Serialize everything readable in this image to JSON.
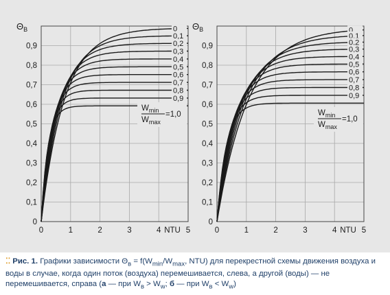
{
  "chart_data": [
    {
      "type": "line",
      "panel": "a",
      "ylabel_symbol": "Θ",
      "ylabel_sub": "В",
      "xlabel": "NTU",
      "xlim": [
        0,
        5
      ],
      "ylim": [
        0,
        1.0
      ],
      "x_ticks": [
        "0",
        "1",
        "2",
        "3",
        "4",
        "5"
      ],
      "y_ticks": [
        "0",
        "0,1",
        "0,2",
        "0,3",
        "0,4",
        "0,5",
        "0,6",
        "0,7",
        "0,8",
        "0,9"
      ],
      "grid": true,
      "ratio_label": {
        "num": "W",
        "num_sub": "min",
        "den": "W",
        "den_sub": "max",
        "value": "=1,0"
      },
      "series": [
        {
          "label": "0",
          "end_value": 0.99
        },
        {
          "label": "0,1",
          "end_value": 0.951
        },
        {
          "label": "0,2",
          "end_value": 0.912
        },
        {
          "label": "0,3",
          "end_value": 0.872
        },
        {
          "label": "0,4",
          "end_value": 0.832
        },
        {
          "label": "0,5",
          "end_value": 0.792
        },
        {
          "label": "0,6",
          "end_value": 0.752
        },
        {
          "label": "0,7",
          "end_value": 0.712
        },
        {
          "label": "0,8",
          "end_value": 0.672
        },
        {
          "label": "0,9",
          "end_value": 0.632
        },
        {
          "label": "",
          "end_value": 0.592
        }
      ]
    },
    {
      "type": "line",
      "panel": "б",
      "ylabel_symbol": "Θ",
      "ylabel_sub": "В",
      "xlabel": "NTU",
      "xlim": [
        0,
        5
      ],
      "ylim": [
        0,
        1.0
      ],
      "x_ticks": [
        "0",
        "1",
        "2",
        "3",
        "4",
        "5"
      ],
      "y_ticks": [
        "0",
        "0,1",
        "0,2",
        "0,3",
        "0,4",
        "0,5",
        "0,6",
        "0,7",
        "0,8",
        "0,9"
      ],
      "grid": true,
      "ratio_label": {
        "num": "W",
        "num_sub": "min",
        "den": "W",
        "den_sub": "max",
        "value": "=1,0"
      },
      "series": [
        {
          "label": "0",
          "end_value": 0.99
        },
        {
          "label": "0,1",
          "end_value": 0.956
        },
        {
          "label": "0,2",
          "end_value": 0.92
        },
        {
          "label": "0,3",
          "end_value": 0.883
        },
        {
          "label": "0,4",
          "end_value": 0.845
        },
        {
          "label": "0,5",
          "end_value": 0.806
        },
        {
          "label": "0,6",
          "end_value": 0.766
        },
        {
          "label": "0,7",
          "end_value": 0.726
        },
        {
          "label": "0,8",
          "end_value": 0.686
        },
        {
          "label": "0,9",
          "end_value": 0.646
        },
        {
          "label": "",
          "end_value": 0.606
        }
      ]
    }
  ],
  "caption": {
    "figure_label": "Рис. 1.",
    "text_1": "Графики зависимости Θ",
    "sub_1": "в",
    "text_2": " = f(W",
    "sub_2": "min",
    "text_3": "/W",
    "sub_3": "max",
    "text_4": ", NTU) для перекрестной схемы движения воздуха и воды в случае, когда один поток (воздуха) перемешивается, слева, а другой (воды) — не перемешивается, справа (",
    "letter_a": "а",
    "text_5": " — при W",
    "sub_5": "в",
    "text_6": " > W",
    "sub_6": "w",
    "text_7": "; ",
    "letter_b": "б",
    "text_8": " — при W",
    "sub_8": "в",
    "text_9": " < W",
    "sub_9": "w",
    "text_10": ")"
  },
  "colors": {
    "panel_bg": "#e7e7e7",
    "curve": "#1a1a1a",
    "grid": "#a8a8a8",
    "caption": "#1f3f68",
    "bullet": "#e0a030"
  }
}
